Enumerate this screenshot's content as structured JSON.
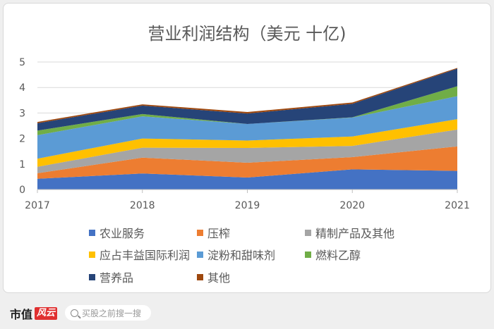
{
  "chart_data": {
    "type": "area",
    "stacked": true,
    "title": "营业利润结构（美元 十亿)",
    "xlabel": "",
    "ylabel": "",
    "categories": [
      "2017",
      "2018",
      "2019",
      "2020",
      "2021"
    ],
    "ylim": [
      0,
      5
    ],
    "yticks": [
      "0",
      "1",
      "2",
      "3",
      "4",
      "5"
    ],
    "grid": true,
    "legend_position": "bottom",
    "series": [
      {
        "name": "农业服务",
        "color": "#4472c4",
        "values": [
          0.42,
          0.63,
          0.47,
          0.79,
          0.73
        ]
      },
      {
        "name": "压榨",
        "color": "#ed7d31",
        "values": [
          0.22,
          0.62,
          0.58,
          0.48,
          0.96
        ]
      },
      {
        "name": "精制产品及其他",
        "color": "#a5a5a5",
        "values": [
          0.25,
          0.39,
          0.58,
          0.44,
          0.66
        ]
      },
      {
        "name": "应占丰益国际利润",
        "color": "#ffc000",
        "values": [
          0.32,
          0.36,
          0.29,
          0.37,
          0.41
        ]
      },
      {
        "name": "淀粉和甜味剂",
        "color": "#5b9bd5",
        "values": [
          0.92,
          0.87,
          0.65,
          0.74,
          0.9
        ]
      },
      {
        "name": "燃料乙醇",
        "color": "#70ad47",
        "values": [
          0.18,
          0.09,
          0.0,
          0.01,
          0.39
        ]
      },
      {
        "name": "营养品",
        "color": "#264478",
        "values": [
          0.29,
          0.33,
          0.41,
          0.53,
          0.69
        ]
      },
      {
        "name": "其他",
        "color": "#9e480e",
        "values": [
          0.05,
          0.05,
          0.06,
          0.05,
          0.03
        ]
      }
    ]
  },
  "footer": {
    "brand": "市值",
    "brand_badge": "风云",
    "search_placeholder": "买股之前搜一搜"
  },
  "watermark": "市值风云"
}
